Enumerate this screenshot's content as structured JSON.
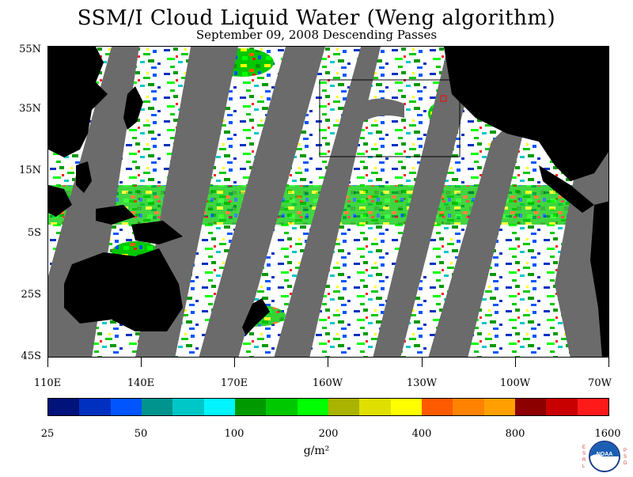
{
  "title": "SSM/I Cloud Liquid Water (Weng algorithm)",
  "subtitle": "September 09, 2008  Descending Passes",
  "lat_labels": [
    "55N",
    "35N",
    "15N",
    "5S",
    "25S",
    "45S"
  ],
  "lon_labels": [
    "110E",
    "140E",
    "170E",
    "160W",
    "130W",
    "100W",
    "70W"
  ],
  "colorbar": {
    "colors": [
      "#00137a",
      "#0030c0",
      "#0055ff",
      "#00948f",
      "#00c7c7",
      "#00f5ff",
      "#009a00",
      "#00c800",
      "#00ff00",
      "#aab400",
      "#e0e000",
      "#ffff00",
      "#ff5a00",
      "#ff8200",
      "#ffa000",
      "#8c0000",
      "#c80000",
      "#ff1a1a"
    ],
    "labels": [
      "25",
      "50",
      "100",
      "200",
      "400",
      "800",
      "1600"
    ],
    "units": "g/m²"
  },
  "map": {
    "land_color": "#000000",
    "no_data_color": "#6b6b6b",
    "background": "#ffffff"
  },
  "logo": {
    "name": "NOAA",
    "left_text": "ESRL",
    "right_text": "PSD"
  }
}
